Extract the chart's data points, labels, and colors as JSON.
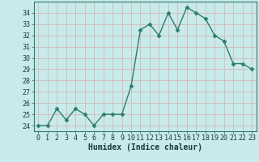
{
  "x": [
    0,
    1,
    2,
    3,
    4,
    5,
    6,
    7,
    8,
    9,
    10,
    11,
    12,
    13,
    14,
    15,
    16,
    17,
    18,
    19,
    20,
    21,
    22,
    23
  ],
  "y": [
    24,
    24,
    25.5,
    24.5,
    25.5,
    25,
    24,
    25,
    25,
    25,
    27.5,
    32.5,
    33,
    32,
    34,
    32.5,
    34.5,
    34,
    33.5,
    32,
    31.5,
    29.5,
    29.5,
    29
  ],
  "line_color": "#2e7d6e",
  "marker": "D",
  "marker_size": 2.5,
  "background_color": "#c8eaea",
  "grid_color": "#d4b8b8",
  "xlabel": "Humidex (Indice chaleur)",
  "ylim": [
    23.5,
    35
  ],
  "xlim": [
    -0.5,
    23.5
  ],
  "yticks": [
    24,
    25,
    26,
    27,
    28,
    29,
    30,
    31,
    32,
    33,
    34
  ],
  "xticks": [
    0,
    1,
    2,
    3,
    4,
    5,
    6,
    7,
    8,
    9,
    10,
    11,
    12,
    13,
    14,
    15,
    16,
    17,
    18,
    19,
    20,
    21,
    22,
    23
  ],
  "tick_label_fontsize": 6.0,
  "xlabel_fontsize": 7.0,
  "line_width": 1.0
}
